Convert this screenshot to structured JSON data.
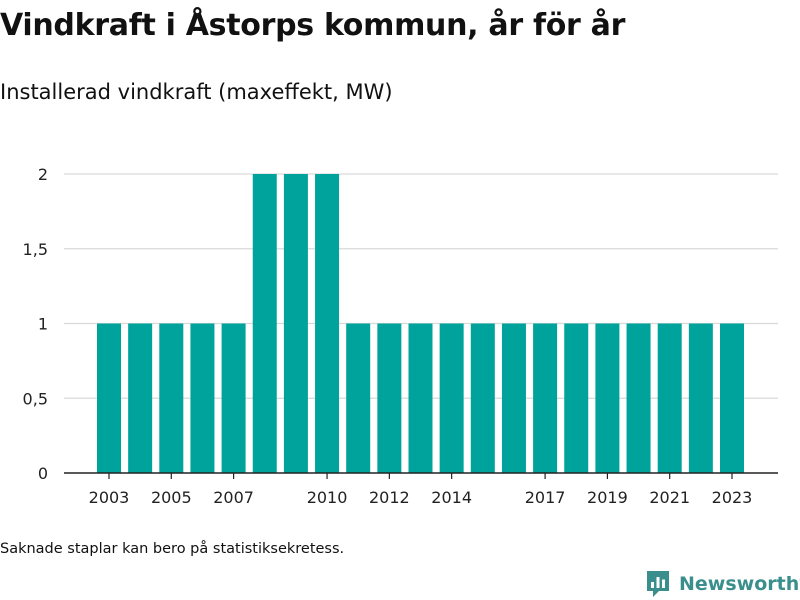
{
  "title": "Vindkraft i Åstorps kommun, år för år",
  "subtitle": "Installerad vindkraft (maxeffekt, MW)",
  "footnote": "Saknade staplar kan bero på statistiksekretess.",
  "brand": {
    "name": "Newsworthy",
    "icon": "bar-chart-logo-icon"
  },
  "colors": {
    "bar": "#00a39b",
    "grid": "#d9d9d9",
    "axis": "#222222",
    "brand": "#3a8f8c"
  },
  "chart_data": {
    "type": "bar",
    "title": "Vindkraft i Åstorps kommun, år för år",
    "subtitle": "Installerad vindkraft (maxeffekt, MW)",
    "xlabel": "",
    "ylabel": "",
    "categories": [
      "2003",
      "2004",
      "2005",
      "2006",
      "2007",
      "2008",
      "2009",
      "2010",
      "2011",
      "2012",
      "2013",
      "2014",
      "2015",
      "2016",
      "2017",
      "2018",
      "2019",
      "2020",
      "2021",
      "2022",
      "2023"
    ],
    "values": [
      1,
      1,
      1,
      1,
      1,
      2,
      2,
      2,
      1,
      1,
      1,
      1,
      1,
      1,
      1,
      1,
      1,
      1,
      1,
      1,
      1
    ],
    "x_tick_labels": [
      "2003",
      "2005",
      "2007",
      "2010",
      "2012",
      "2014",
      "2017",
      "2019",
      "2021",
      "2023"
    ],
    "y_ticks": [
      0,
      0.5,
      1,
      1.5,
      2
    ],
    "y_tick_labels": [
      "0",
      "0,5",
      "1",
      "1,5",
      "2"
    ],
    "ylim": [
      0,
      2
    ],
    "grid": true,
    "legend": "none"
  }
}
